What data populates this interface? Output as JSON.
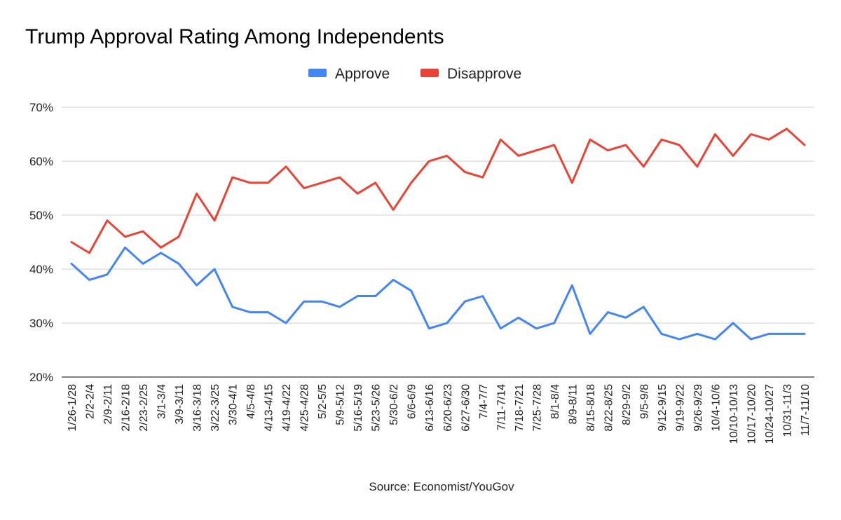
{
  "chart_data": {
    "type": "line",
    "title": "Trump Approval Rating Among Independents",
    "source": "Source: Economist/YouGov",
    "xlabel": "",
    "ylabel": "",
    "ylim": [
      20,
      70
    ],
    "yticks": [
      20,
      30,
      40,
      50,
      60,
      70
    ],
    "ytick_labels": [
      "20%",
      "30%",
      "40%",
      "50%",
      "60%",
      "70%"
    ],
    "grid": true,
    "legend_position": "top-center",
    "categories": [
      "1/26-1/28",
      "2/2-2/4",
      "2/9-2/11",
      "2/16-2/18",
      "2/23-2/25",
      "3/1-3/4",
      "3/9-3/11",
      "3/16-3/18",
      "3/22-3/25",
      "3/30-4/1",
      "4/5-4/8",
      "4/13-4/15",
      "4/19-4/22",
      "4/25-4/28",
      "5/2-5/5",
      "5/9-5/12",
      "5/16-5/19",
      "5/23-5/26",
      "5/30-6/2",
      "6/6-6/9",
      "6/13-6/16",
      "6/20-6/23",
      "6/27-6/30",
      "7/4-7/7",
      "7/11-7/14",
      "7/18-7/21",
      "7/25-7/28",
      "8/1-8/4",
      "8/9-8/11",
      "8/15-8/18",
      "8/22-8/25",
      "8/29-9/2",
      "9/5-9/8",
      "9/12-9/15",
      "9/19-9/22",
      "9/26-9/29",
      "10/4-10/6",
      "10/10-10/13",
      "10/17-10/20",
      "10/24-10/27",
      "10/31-11/3",
      "11/7-11/10"
    ],
    "series": [
      {
        "name": "Approve",
        "color": "#4285f4",
        "values": [
          41,
          38,
          39,
          44,
          41,
          43,
          41,
          37,
          40,
          33,
          32,
          32,
          30,
          34,
          34,
          33,
          35,
          35,
          38,
          36,
          29,
          30,
          34,
          35,
          29,
          31,
          29,
          30,
          37,
          28,
          32,
          31,
          33,
          28,
          27,
          28,
          27,
          30,
          27,
          28,
          28,
          28
        ]
      },
      {
        "name": "Disapprove",
        "color": "#ea4335",
        "values": [
          45,
          43,
          49,
          46,
          47,
          44,
          46,
          54,
          49,
          57,
          56,
          56,
          59,
          55,
          56,
          57,
          54,
          56,
          51,
          56,
          60,
          61,
          58,
          57,
          64,
          61,
          62,
          63,
          56,
          64,
          62,
          63,
          59,
          64,
          63,
          59,
          65,
          61,
          65,
          64,
          66,
          63
        ]
      }
    ]
  }
}
